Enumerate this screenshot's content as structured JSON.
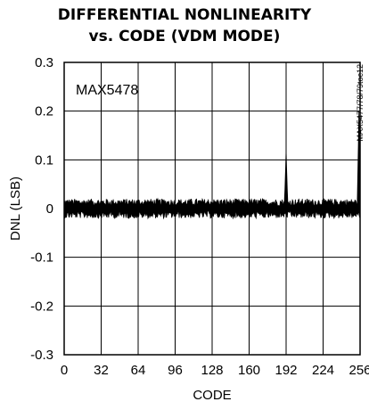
{
  "chart_data": {
    "type": "line",
    "title_line1": "DIFFERENTIAL NONLINEARITY",
    "title_line2": "vs. CODE (VDM MODE)",
    "xlabel": "CODE",
    "ylabel": "DNL (LSB)",
    "xlim": [
      0,
      256
    ],
    "ylim": [
      -0.3,
      0.3
    ],
    "xticks": [
      "0",
      "32",
      "64",
      "96",
      "128",
      "160",
      "192",
      "224",
      "256"
    ],
    "yticks": [
      "0.3",
      "0.2",
      "0.1",
      "0",
      "-0.1",
      "-0.2",
      "-0.3"
    ],
    "grid": true,
    "annotation": "MAX5478",
    "part_number": "MAX5477/78/79toc12",
    "series": [
      {
        "noise_amplitude": 0.02,
        "spikes": [
          {
            "x": 192,
            "y": 0.12
          },
          {
            "x": 255,
            "y": 0.2
          }
        ]
      }
    ]
  }
}
